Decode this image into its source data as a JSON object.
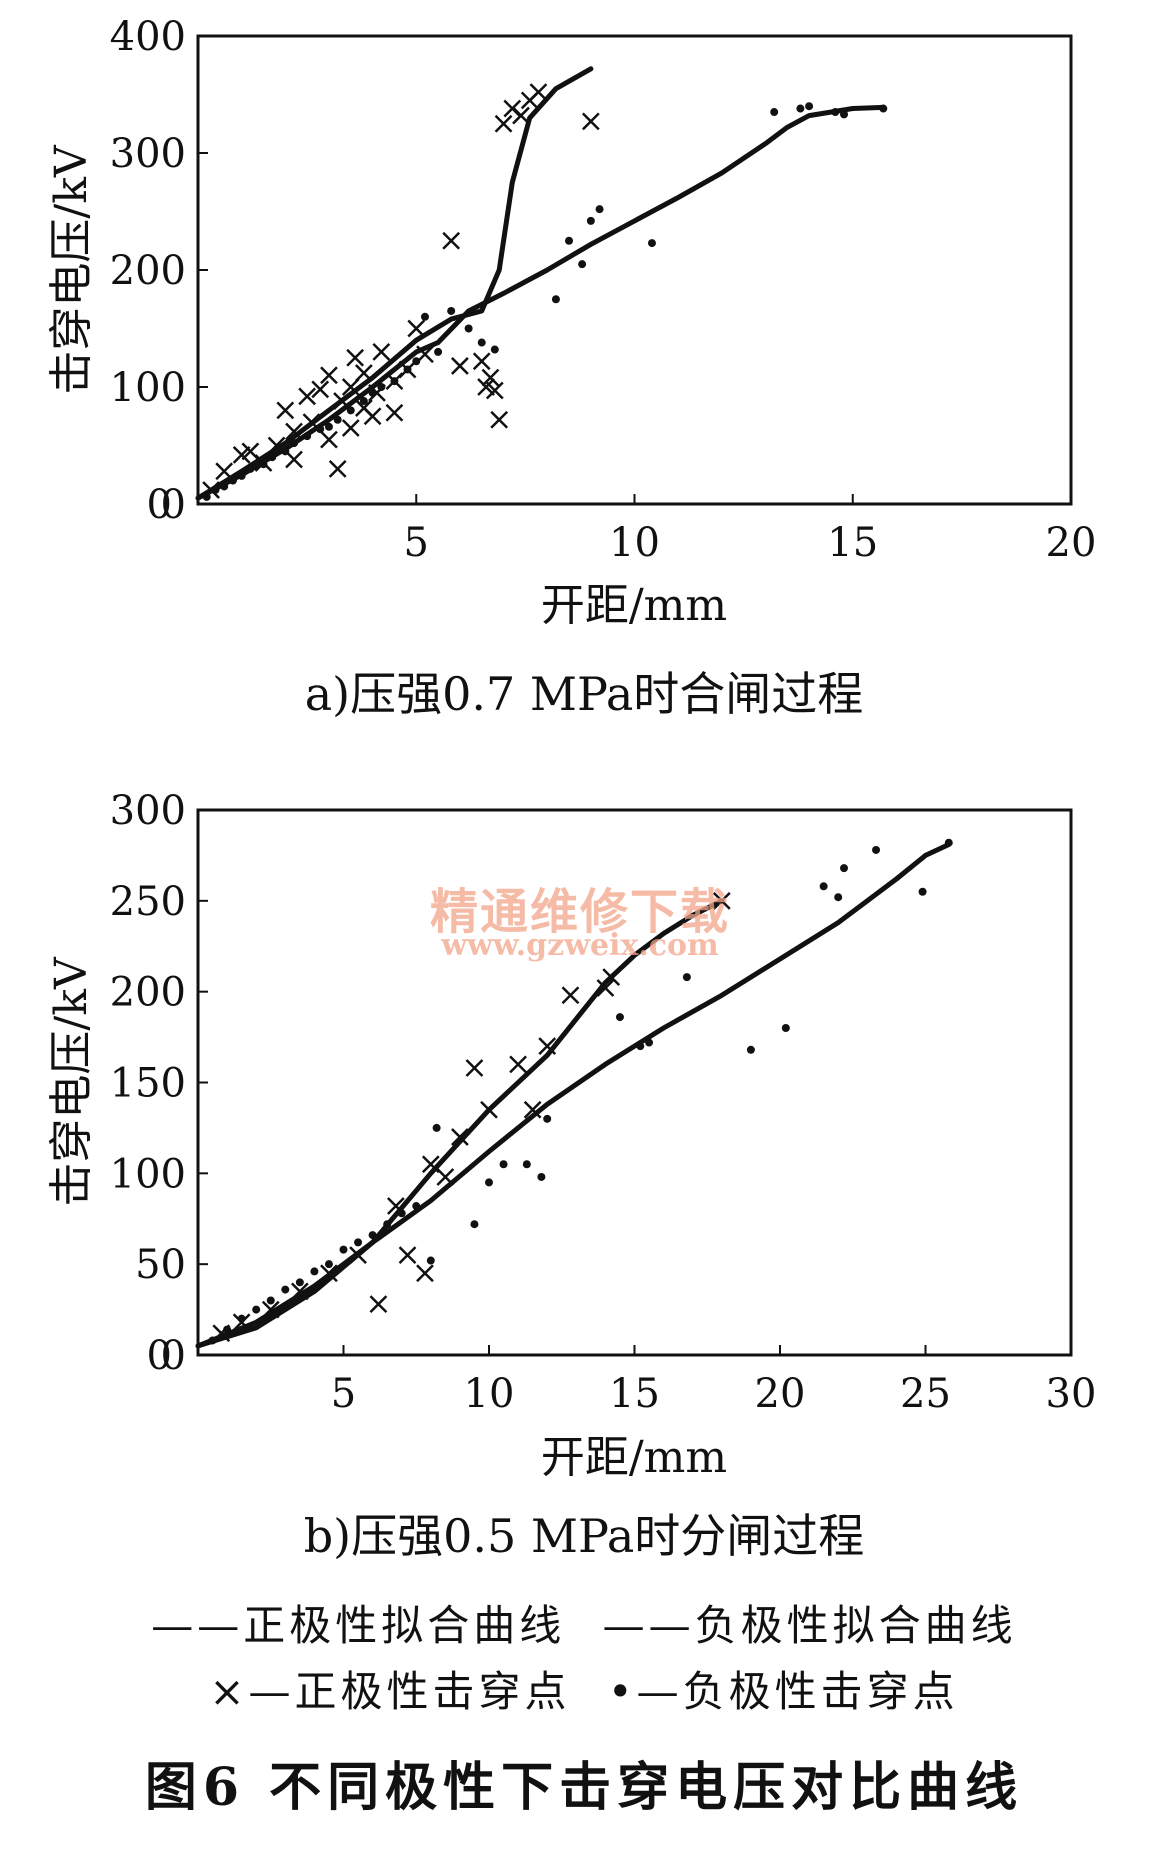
{
  "watermark": {
    "title": "精通维修下载",
    "url": "www.gzweix.com"
  },
  "legend": {
    "pos_fit": "——正极性拟合曲线",
    "neg_fit": "——负极性拟合曲线",
    "pos_points": "×—正极性击穿点",
    "neg_points": "•—负极性击穿点"
  },
  "figure_title": "图6  不同极性下击穿电压对比曲线",
  "chart_data": [
    {
      "id": "a",
      "type": "scatter",
      "caption": "a)压强0.7 MPa时合闸过程",
      "xlabel": "开距/mm",
      "ylabel": "击穿电压/kV",
      "xlim": [
        0,
        20
      ],
      "ylim": [
        0,
        400
      ],
      "xticks": [
        0,
        5,
        10,
        15,
        20
      ],
      "yticks": [
        0,
        100,
        200,
        300,
        400
      ],
      "grid": false,
      "series": [
        {
          "name": "正极性拟合曲线",
          "kind": "line",
          "x": [
            0,
            1,
            2,
            3,
            4,
            5,
            5.8,
            6.5,
            6.9,
            7.2,
            7.6,
            8.2,
            9.0
          ],
          "y": [
            5,
            28,
            52,
            80,
            108,
            140,
            158,
            165,
            200,
            275,
            330,
            355,
            372
          ]
        },
        {
          "name": "负极性拟合曲线",
          "kind": "line",
          "x": [
            0,
            1,
            2,
            3,
            4,
            5,
            5.5,
            6.2,
            7,
            8,
            9,
            10,
            11,
            12,
            13,
            13.5,
            14,
            15,
            15.7
          ],
          "y": [
            5,
            25,
            47,
            72,
            100,
            130,
            138,
            165,
            180,
            200,
            222,
            242,
            262,
            283,
            308,
            322,
            332,
            338,
            339
          ]
        },
        {
          "name": "正极性击穿点",
          "kind": "cross",
          "x": [
            0.3,
            0.6,
            1.0,
            1.2,
            1.5,
            1.8,
            2.0,
            2.2,
            2.2,
            2.5,
            2.6,
            2.8,
            3.0,
            3.0,
            3.2,
            3.3,
            3.5,
            3.5,
            3.6,
            3.8,
            3.8,
            4.0,
            4.1,
            4.2,
            4.5,
            4.5,
            4.8,
            5.0,
            5.2,
            5.8,
            6.0,
            6.5,
            6.6,
            6.7,
            6.8,
            6.9,
            7.0,
            7.2,
            7.4,
            7.6,
            7.8,
            9.0
          ],
          "y": [
            12,
            28,
            42,
            45,
            35,
            50,
            80,
            62,
            38,
            92,
            70,
            98,
            55,
            110,
            30,
            88,
            100,
            65,
            125,
            82,
            112,
            75,
            95,
            130,
            105,
            78,
            115,
            150,
            128,
            225,
            118,
            122,
            100,
            108,
            97,
            72,
            325,
            338,
            332,
            345,
            352,
            327
          ]
        },
        {
          "name": "负极性击穿点",
          "kind": "dot",
          "x": [
            0.2,
            0.4,
            0.6,
            0.8,
            1.0,
            1.2,
            1.5,
            1.7,
            2.0,
            2.2,
            2.5,
            2.8,
            3.0,
            3.2,
            3.5,
            3.8,
            4.0,
            4.2,
            4.5,
            4.8,
            5.0,
            5.2,
            5.5,
            5.8,
            6.2,
            6.5,
            6.8,
            8.2,
            8.5,
            8.8,
            9.0,
            9.2,
            10.4,
            13.2,
            13.8,
            14.0,
            14.6,
            14.8,
            15.7
          ],
          "y": [
            6,
            12,
            15,
            20,
            24,
            30,
            34,
            40,
            45,
            52,
            58,
            64,
            66,
            72,
            80,
            88,
            95,
            100,
            105,
            115,
            122,
            160,
            130,
            165,
            150,
            138,
            132,
            175,
            225,
            205,
            242,
            252,
            223,
            335,
            338,
            340,
            335,
            333,
            338
          ]
        }
      ]
    },
    {
      "id": "b",
      "type": "scatter",
      "caption": "b)压强0.5 MPa时分闸过程",
      "xlabel": "开距/mm",
      "ylabel": "击穿电压/kV",
      "xlim": [
        0,
        30
      ],
      "ylim": [
        0,
        300
      ],
      "xticks": [
        0,
        5,
        10,
        15,
        20,
        25,
        30
      ],
      "yticks": [
        0,
        50,
        100,
        150,
        200,
        250,
        300
      ],
      "grid": false,
      "series": [
        {
          "name": "正极性拟合曲线",
          "kind": "line",
          "x": [
            0,
            2,
            4,
            6,
            8,
            10,
            12,
            13,
            14,
            15,
            16,
            17,
            18
          ],
          "y": [
            5,
            15,
            35,
            62,
            100,
            135,
            165,
            185,
            205,
            220,
            232,
            242,
            250
          ]
        },
        {
          "name": "负极性拟合曲线",
          "kind": "line",
          "x": [
            0,
            2,
            4,
            6,
            8,
            10,
            12,
            14,
            16,
            18,
            20,
            22,
            24,
            25,
            25.8
          ],
          "y": [
            5,
            18,
            38,
            62,
            85,
            112,
            138,
            160,
            180,
            198,
            218,
            238,
            262,
            275,
            281
          ]
        },
        {
          "name": "正极性击穿点",
          "kind": "cross",
          "x": [
            0.8,
            1.5,
            2.5,
            3.5,
            4.5,
            5.5,
            6.2,
            6.8,
            7.2,
            7.8,
            8.0,
            8.5,
            9.0,
            9.5,
            10.0,
            11.0,
            11.5,
            12.0,
            12.8,
            14.0,
            14.2,
            18.0
          ],
          "y": [
            12,
            18,
            25,
            35,
            45,
            55,
            28,
            82,
            55,
            45,
            105,
            98,
            120,
            158,
            135,
            160,
            135,
            170,
            198,
            202,
            208,
            250
          ]
        },
        {
          "name": "负极性击穿点",
          "kind": "dot",
          "x": [
            0.5,
            1.0,
            1.5,
            2.0,
            2.5,
            3.0,
            3.5,
            4.0,
            4.5,
            5.0,
            5.5,
            6.0,
            6.5,
            7.0,
            7.5,
            8.0,
            8.2,
            9.5,
            10.0,
            10.5,
            11.3,
            11.8,
            12.0,
            14.5,
            15.2,
            15.5,
            16.8,
            19.0,
            20.2,
            21.5,
            22.0,
            22.2,
            23.3,
            24.9,
            25.8
          ],
          "y": [
            8,
            14,
            20,
            25,
            30,
            36,
            40,
            46,
            50,
            58,
            62,
            66,
            72,
            78,
            82,
            52,
            125,
            72,
            95,
            105,
            105,
            98,
            130,
            186,
            170,
            172,
            208,
            168,
            180,
            258,
            252,
            268,
            278,
            255,
            282
          ]
        }
      ]
    }
  ]
}
